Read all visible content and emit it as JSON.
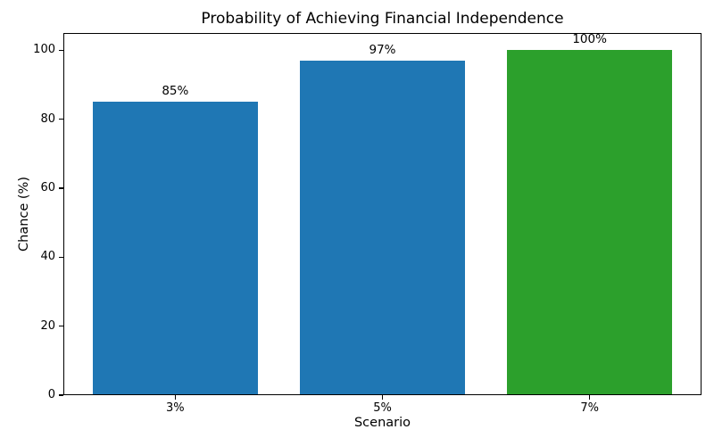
{
  "chart_data": {
    "type": "bar",
    "title": "Probability of Achieving Financial Independence",
    "xlabel": "Scenario",
    "ylabel": "Chance (%)",
    "categories": [
      "3%",
      "5%",
      "7%"
    ],
    "values": [
      85,
      97,
      100
    ],
    "bar_labels": [
      "85%",
      "97%",
      "100%"
    ],
    "bar_colors": [
      "#1f77b4",
      "#1f77b4",
      "#2ca02c"
    ],
    "ylim": [
      0,
      105
    ],
    "yticks": [
      0,
      20,
      40,
      60,
      80,
      100
    ],
    "grid": false,
    "legend": "none",
    "bar_width_fraction": 0.8,
    "axis_color": "#000000",
    "background_color": "#ffffff"
  }
}
